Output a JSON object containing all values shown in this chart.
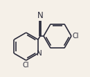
{
  "bg_color": "#f5f0e8",
  "bond_color": "#2a2a3a",
  "text_color": "#2a2a3a",
  "line_width": 1.2,
  "font_size": 7.0,
  "figsize": [
    1.3,
    1.11
  ],
  "dpi": 100,
  "xlim": [
    0,
    130
  ],
  "ylim": [
    0,
    111
  ]
}
